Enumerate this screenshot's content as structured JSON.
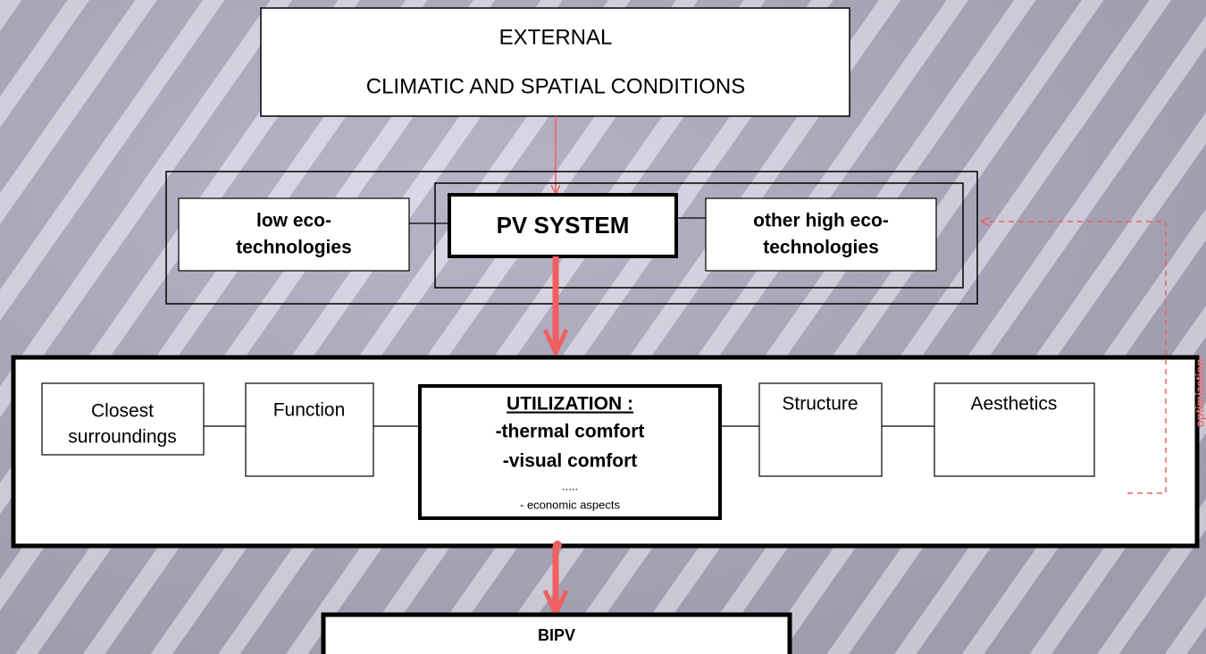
{
  "external": {
    "lines": [
      "EXTERNAL",
      "CLIMATIC AND SPATIAL CONDITIONS"
    ]
  },
  "technologies": {
    "low": [
      "low eco-",
      "technologies"
    ],
    "pv": "PV SYSTEM",
    "high": [
      "other high eco-",
      "technologies"
    ]
  },
  "building": {
    "closest": [
      "Closest",
      "surroundings"
    ],
    "function": "Function",
    "utilization": {
      "title": "UTILIZATION :",
      "items": [
        "-thermal comfort",
        "-visual comfort",
        ".....",
        "- economic aspects"
      ]
    },
    "structure": "Structure",
    "aesthetics": "Aesthetics"
  },
  "output": "BIPV",
  "feedback": "optimization"
}
